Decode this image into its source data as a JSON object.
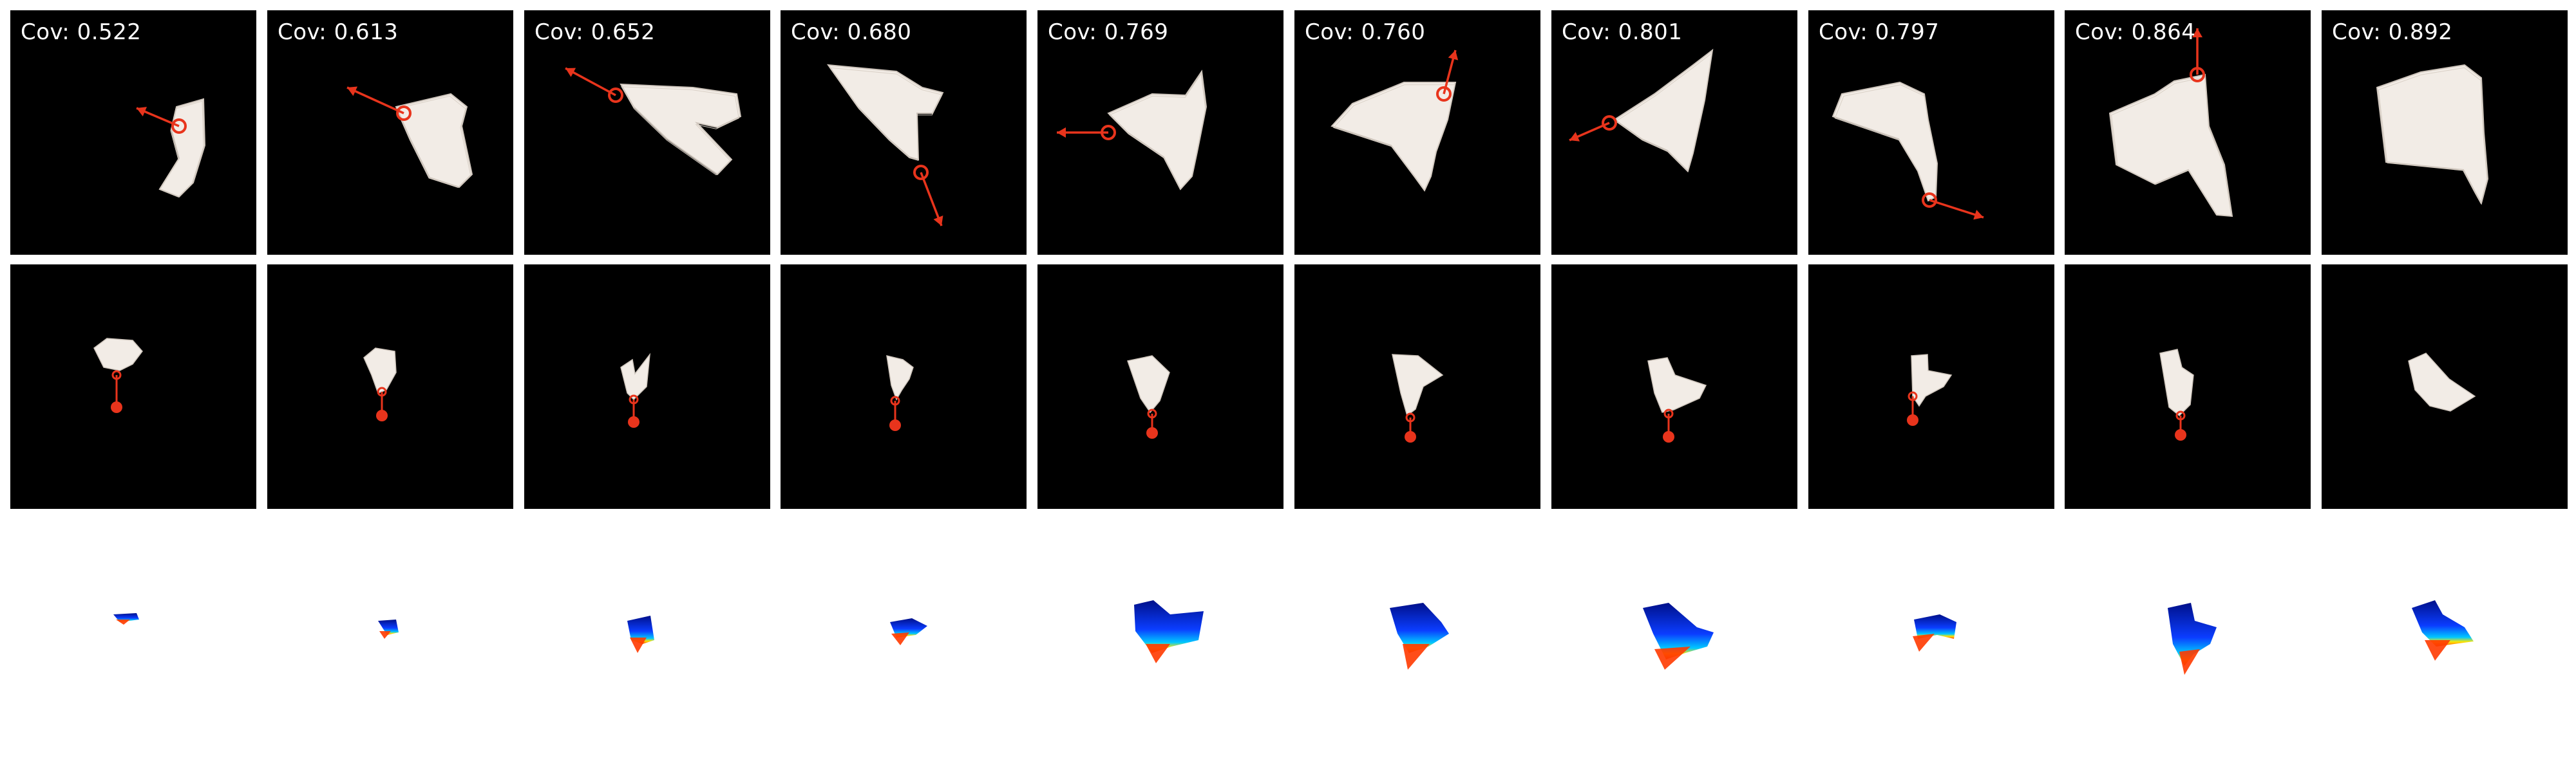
{
  "coverage_label": "Cov:",
  "accent_color": "#e8341c",
  "cloth_color": "#f2ece6",
  "heatmap_colors": [
    "#00108a",
    "#0b3dff",
    "#00c8ff",
    "#ffe600",
    "#ff3a00"
  ],
  "steps": [
    {
      "coverage": "0.522"
    },
    {
      "coverage": "0.613"
    },
    {
      "coverage": "0.652"
    },
    {
      "coverage": "0.680"
    },
    {
      "coverage": "0.769"
    },
    {
      "coverage": "0.760"
    },
    {
      "coverage": "0.801"
    },
    {
      "coverage": "0.797"
    },
    {
      "coverage": "0.864"
    },
    {
      "coverage": "0.892"
    }
  ]
}
